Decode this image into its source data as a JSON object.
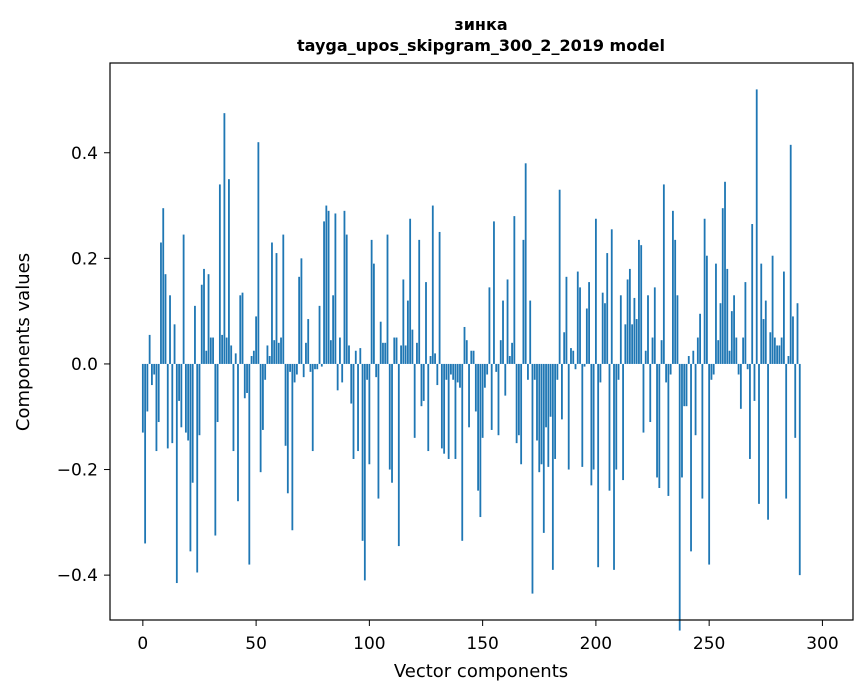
{
  "chart_data": {
    "type": "bar",
    "title": "зинка",
    "subtitle": "tayga_upos_skipgram_300_2_2019 model",
    "xlabel": "Vector components",
    "ylabel": "Components values",
    "xlim": [
      -14.5,
      313.5
    ],
    "ylim": [
      -0.485,
      0.57
    ],
    "xticks": [
      0,
      50,
      100,
      150,
      200,
      250,
      300
    ],
    "yticks": [
      -0.4,
      -0.2,
      0.0,
      0.2,
      0.4
    ],
    "ytick_labels": [
      "−0.4",
      "−0.2",
      "0.0",
      "0.2",
      "0.4"
    ],
    "bar_color": "#1f77b4",
    "values": [
      -0.13,
      -0.34,
      -0.09,
      0.055,
      -0.04,
      -0.02,
      -0.165,
      -0.11,
      0.23,
      0.295,
      0.17,
      -0.16,
      0.13,
      -0.15,
      0.075,
      -0.415,
      -0.07,
      -0.12,
      0.245,
      -0.13,
      -0.145,
      -0.355,
      -0.225,
      0.11,
      -0.395,
      -0.135,
      0.15,
      0.18,
      0.025,
      0.17,
      0.05,
      0.05,
      -0.325,
      -0.11,
      0.34,
      0.055,
      0.475,
      0.05,
      0.35,
      0.035,
      -0.165,
      0.02,
      -0.26,
      0.13,
      0.135,
      -0.065,
      -0.055,
      -0.38,
      0.015,
      0.025,
      0.09,
      0.42,
      -0.205,
      -0.125,
      -0.03,
      0.035,
      0.015,
      0.23,
      0.045,
      0.21,
      0.04,
      0.05,
      0.245,
      -0.155,
      -0.245,
      -0.015,
      -0.315,
      -0.035,
      -0.02,
      0.165,
      0.2,
      -0.025,
      0.04,
      0.085,
      -0.015,
      -0.165,
      -0.01,
      -0.01,
      0.11,
      -0.005,
      0.27,
      0.3,
      0.29,
      0.045,
      0.13,
      0.285,
      -0.05,
      0.05,
      -0.035,
      0.29,
      0.245,
      0.035,
      -0.075,
      -0.18,
      0.025,
      -0.165,
      0.03,
      -0.335,
      -0.41,
      -0.03,
      -0.19,
      0.235,
      0.19,
      -0.025,
      -0.255,
      0.08,
      0.04,
      0.04,
      0.245,
      -0.2,
      -0.225,
      0.05,
      0.05,
      -0.345,
      0.035,
      0.16,
      0.035,
      0.12,
      0.275,
      0.065,
      -0.14,
      0.04,
      0.235,
      -0.08,
      -0.07,
      0.155,
      -0.165,
      0.015,
      0.3,
      0.02,
      -0.04,
      0.25,
      -0.16,
      -0.17,
      -0.03,
      -0.18,
      -0.02,
      -0.03,
      -0.18,
      -0.035,
      -0.045,
      -0.335,
      0.07,
      0.045,
      -0.12,
      0.025,
      0.025,
      -0.09,
      -0.24,
      -0.29,
      -0.14,
      -0.045,
      -0.02,
      0.145,
      -0.125,
      0.27,
      -0.015,
      -0.135,
      0.045,
      0.12,
      -0.06,
      0.16,
      0.015,
      0.04,
      0.28,
      -0.15,
      -0.135,
      -0.19,
      0.235,
      0.38,
      -0.03,
      0.12,
      -0.435,
      -0.03,
      -0.145,
      -0.205,
      -0.19,
      -0.32,
      -0.12,
      -0.195,
      -0.1,
      -0.39,
      -0.18,
      -0.03,
      0.33,
      -0.105,
      0.06,
      0.165,
      -0.2,
      0.03,
      0.025,
      -0.01,
      0.175,
      0.145,
      -0.195,
      -0.005,
      0.105,
      0.155,
      -0.23,
      -0.2,
      0.275,
      -0.385,
      -0.035,
      0.135,
      0.115,
      0.21,
      -0.24,
      0.255,
      -0.39,
      -0.2,
      -0.03,
      0.13,
      -0.22,
      0.075,
      0.16,
      0.18,
      0.075,
      0.125,
      0.085,
      0.235,
      0.225,
      -0.13,
      0.025,
      0.13,
      -0.11,
      0.05,
      0.145,
      -0.215,
      -0.235,
      0.045,
      0.34,
      -0.035,
      -0.25,
      -0.02,
      0.29,
      0.235,
      0.13,
      -0.505,
      -0.215,
      -0.08,
      -0.08,
      0.015,
      -0.355,
      0.025,
      -0.135,
      0.05,
      0.095,
      -0.255,
      0.275,
      0.205,
      -0.38,
      -0.03,
      -0.02,
      0.19,
      0.045,
      0.115,
      0.295,
      0.345,
      0.18,
      0.025,
      0.1,
      0.13,
      0.05,
      -0.02,
      -0.085,
      0.05,
      0.155,
      -0.01,
      -0.18,
      0.265,
      -0.07,
      0.52,
      -0.265,
      0.19,
      0.085,
      0.12,
      -0.295,
      0.06,
      0.205,
      0.05,
      0.035,
      0.035,
      0.05,
      0.175,
      -0.255,
      0.015,
      0.415,
      0.09,
      -0.14,
      0.115,
      -0.4
    ]
  }
}
